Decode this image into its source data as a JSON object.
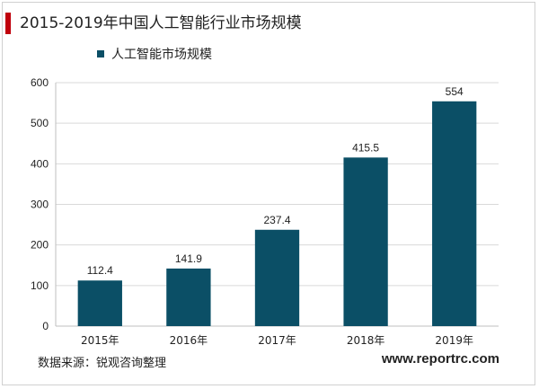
{
  "chart_data": {
    "type": "bar",
    "title": "2015-2019年中国人工智能行业市场规模",
    "categories": [
      "2015年",
      "2016年",
      "2017年",
      "2018年",
      "2019年"
    ],
    "series": [
      {
        "name": "人工智能市场规模",
        "values": [
          112.4,
          141.9,
          237.4,
          415.5,
          554
        ]
      }
    ],
    "data_labels": [
      "112.4",
      "141.9",
      "237.4",
      "415.5",
      "554"
    ],
    "ylim": [
      0,
      600
    ],
    "yticks": [
      0,
      100,
      200,
      300,
      400,
      500,
      600
    ],
    "legend_position": "top-left",
    "grid": true,
    "bar_color": "#0b4f66",
    "accent_color": "#c0000c"
  },
  "footer": {
    "source": "数据来源：锐观咨询整理",
    "website": "www.reportrc.com"
  }
}
